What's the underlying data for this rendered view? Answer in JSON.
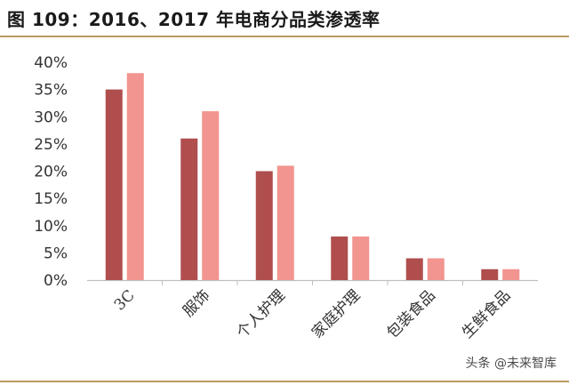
{
  "header": {
    "title": "图 109：2016、2017 年电商分品类渗透率"
  },
  "watermark": "头条 @未来智库",
  "colors": {
    "series_2016": "#b04e4e",
    "series_2017": "#f2948f",
    "axis": "#bfbfbf",
    "rule": "#b89a63"
  },
  "chart_data": {
    "type": "bar",
    "categories": [
      "3C",
      "服饰",
      "个人护理",
      "家庭护理",
      "包装食品",
      "生鲜食品"
    ],
    "series": [
      {
        "name": "",
        "values": [
          35,
          26,
          20,
          8,
          4,
          2
        ]
      },
      {
        "name": "",
        "values": [
          38,
          31,
          21,
          8,
          4,
          2
        ]
      }
    ],
    "yticks": [
      "0%",
      "5%",
      "10%",
      "15%",
      "20%",
      "25%",
      "30%",
      "35%",
      "40%"
    ],
    "ylim": [
      0,
      40
    ],
    "grid": false,
    "legend": "none"
  }
}
